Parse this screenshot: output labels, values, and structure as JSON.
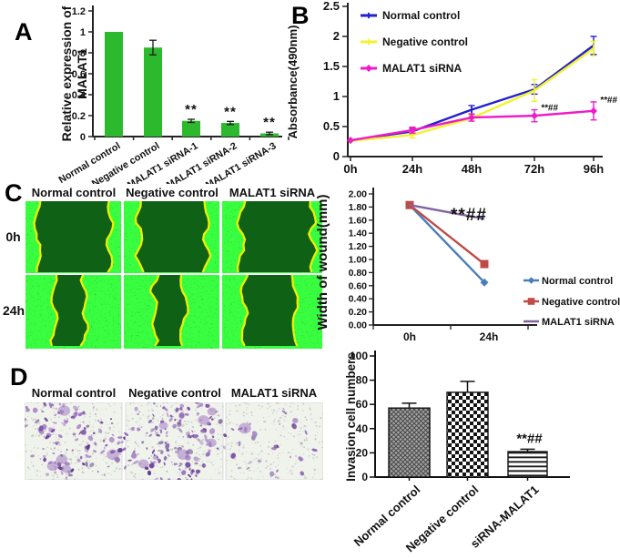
{
  "panels": {
    "a": {
      "label": "A"
    },
    "b": {
      "label": "B"
    },
    "c": {
      "label": "C",
      "column_headers": [
        "Normal control",
        "Negative control",
        "MALAT1 siRNA"
      ],
      "row_labels": [
        "0h",
        "24h"
      ]
    },
    "d": {
      "label": "D",
      "column_headers": [
        "Normal control",
        "Negative control",
        "MALAT1 siRNA"
      ]
    }
  },
  "colors": {
    "bar_green": "#2db92d",
    "line_blue": "#2121cc",
    "line_yellow": "#f2f230",
    "line_magenta": "#ee1cc8",
    "wound_blue": "#4a7ebb",
    "wound_red": "#bf4b47",
    "wound_purple": "#8064a2",
    "wound_edge_yellow": "#f0f000",
    "axis": "#222222"
  },
  "chart_data": [
    {
      "id": "malat1-relative-expression",
      "type": "bar",
      "ylabel_lines": [
        "Relative expression of",
        "MALAT1"
      ],
      "categories": [
        "Normal control",
        "Negative control",
        "MALAT1 siRNA-1",
        "MALAT1 siRNA-2",
        "MALAT1 siRNA-3"
      ],
      "values": [
        1.0,
        0.85,
        0.15,
        0.13,
        0.03
      ],
      "errors": [
        0,
        0.07,
        0.015,
        0.015,
        0.012
      ],
      "annotations": [
        "",
        "",
        "**",
        "**",
        "**"
      ],
      "ylim": [
        0,
        1.2
      ],
      "yticks": [
        "0",
        "0.2",
        "0.4",
        "0.6",
        "0.8",
        "1",
        "1.2"
      ],
      "bar_color": "#2db92d",
      "grid": false
    },
    {
      "id": "cck8-proliferation",
      "type": "line",
      "ylabel": "Absorbance(490nm)",
      "x": [
        "0h",
        "24h",
        "48h",
        "72h",
        "96h"
      ],
      "ylim": [
        0,
        2.5
      ],
      "yticks": [
        "0",
        "0.5",
        "1",
        "1.5",
        "2",
        "2.5"
      ],
      "legend_position": "top-left",
      "series": [
        {
          "name": "Normal control",
          "color": "#2121cc",
          "marker": "tick",
          "values": [
            0.27,
            0.42,
            0.78,
            1.12,
            1.85
          ],
          "errors": [
            0.02,
            0.05,
            0.07,
            0.08,
            0.15
          ]
        },
        {
          "name": "Negative control",
          "color": "#f2f230",
          "marker": "tick",
          "values": [
            0.26,
            0.36,
            0.64,
            1.1,
            1.8
          ],
          "errors": [
            0.02,
            0.05,
            0.05,
            0.18,
            0.12
          ]
        },
        {
          "name": "MALAT1 siRNA",
          "color": "#ee1cc8",
          "marker": "diamond",
          "values": [
            0.27,
            0.44,
            0.65,
            0.68,
            0.76
          ],
          "errors": [
            0.02,
            0.05,
            0.06,
            0.1,
            0.15
          ]
        }
      ],
      "annotations": [
        {
          "text": "**##",
          "x_index": 3,
          "series_index": 2
        },
        {
          "text": "**##",
          "x_index": 4,
          "series_index": 2
        }
      ]
    },
    {
      "id": "wound-width",
      "type": "line",
      "ylabel": "Width of wound(mm)",
      "x": [
        "0h",
        "24h"
      ],
      "ylim": [
        0,
        2
      ],
      "yticks": [
        "0.00",
        "0.20",
        "0.40",
        "0.60",
        "0.80",
        "1.00",
        "1.20",
        "1.40",
        "1.60",
        "1.80",
        "2.00"
      ],
      "legend_position": "right",
      "series": [
        {
          "name": "Normal control",
          "color": "#4a7ebb",
          "marker": "diamond",
          "values": [
            1.83,
            0.65
          ]
        },
        {
          "name": "Negative control",
          "color": "#bf4b47",
          "marker": "square",
          "values": [
            1.83,
            0.93
          ]
        },
        {
          "name": "MALAT1 siRNA",
          "color": "#8064a2",
          "marker": "none",
          "values": [
            1.83,
            1.62
          ]
        }
      ],
      "annotations": [
        {
          "text": "**##",
          "x_index": 1,
          "series_index": 2
        }
      ]
    },
    {
      "id": "invasion-cell-numbers",
      "type": "bar",
      "ylabel": "Invasion cell numbers",
      "categories": [
        "Normal control",
        "Negative control",
        "siRNA-MALAT1"
      ],
      "values": [
        57,
        70,
        21
      ],
      "errors": [
        4,
        9,
        2
      ],
      "annotations": [
        "",
        "",
        "**##"
      ],
      "ylim": [
        0,
        100
      ],
      "yticks": [
        "0",
        "20",
        "40",
        "60",
        "80",
        "100"
      ],
      "patterns": [
        "diagonal-crosshatch-gray",
        "checkerboard",
        "horizontal-lines"
      ]
    }
  ]
}
